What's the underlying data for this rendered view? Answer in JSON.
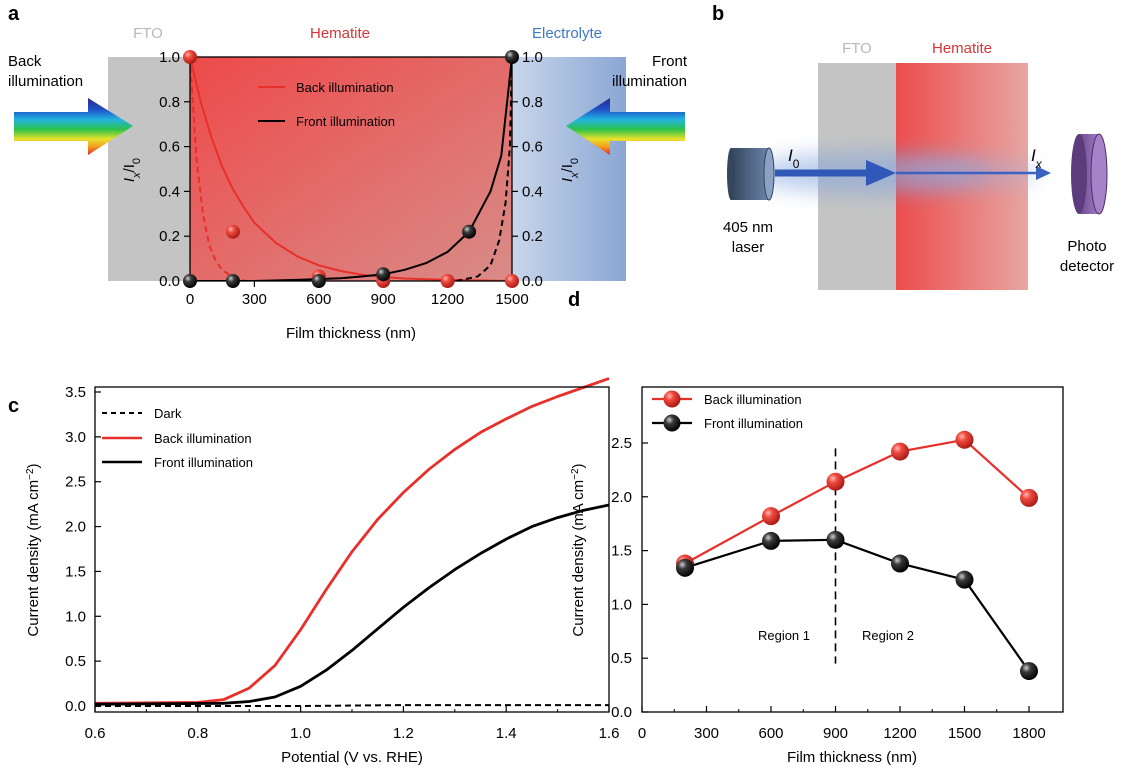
{
  "panel_labels": {
    "a": "a",
    "b": "b",
    "c": "c",
    "d": "d"
  },
  "panel_a": {
    "zones": {
      "fto": "FTO",
      "hematite": "Hematite",
      "electrolyte": "Electrolyte"
    },
    "back_note": [
      "Back",
      "illumination"
    ],
    "front_note": [
      "Front",
      "illumination"
    ],
    "ylabel_main": "I",
    "ylabel_sub1": "x",
    "ylabel_slash": "/I",
    "ylabel_sub2": "0",
    "xlabel": "Film thickness (nm)",
    "legend": {
      "back": "Back illumination",
      "front": "Front illumination"
    },
    "colors": {
      "back": "#e8302a",
      "front": "#000000"
    }
  },
  "panel_b": {
    "fto": "FTO",
    "hematite": "Hematite",
    "i0_main": "I",
    "i0_sub": "0",
    "ix_main": "I",
    "ix_sub": "x",
    "laser": [
      "405 nm",
      "laser"
    ],
    "detector": [
      "Photo",
      "detector"
    ]
  },
  "panel_c": {
    "xlabel": "Potential (V vs. RHE)",
    "ylabel": "Current density (mA cm",
    "ylabel_sup": "−2",
    "ylabel_close": ")",
    "legend": {
      "dark": "Dark",
      "back": "Back illumination",
      "front": "Front illumination"
    }
  },
  "panel_d": {
    "xlabel": "Film thickness (nm)",
    "ylabel": "Current density (mA cm",
    "ylabel_sup": "−2",
    "ylabel_close": ")",
    "legend": {
      "back": "Back illumination",
      "front": "Front illumination"
    },
    "regions": {
      "r1": "Region 1",
      "r2": "Region 2"
    }
  },
  "chart_data": [
    {
      "panel": "a",
      "type": "scatter",
      "xlabel": "Film thickness (nm)",
      "ylabel": "Ix/I0",
      "xlim": [
        0,
        1500
      ],
      "ylim": [
        0,
        1.0
      ],
      "xticks": [
        "0",
        "300",
        "600",
        "900",
        "1200",
        "1500"
      ],
      "yticks": [
        "0.0",
        "0.2",
        "0.4",
        "0.6",
        "0.8",
        "1.0"
      ],
      "series": [
        {
          "name": "Back illumination",
          "points": [
            [
              0,
              1.0
            ],
            [
              200,
              0.22
            ],
            [
              600,
              0.02
            ],
            [
              900,
              0.0
            ],
            [
              1200,
              0.0
            ],
            [
              1500,
              0.0
            ]
          ],
          "fit": [
            [
              0,
              1.0
            ],
            [
              50,
              0.8
            ],
            [
              100,
              0.64
            ],
            [
              150,
              0.51
            ],
            [
              200,
              0.41
            ],
            [
              250,
              0.33
            ],
            [
              300,
              0.26
            ],
            [
              400,
              0.17
            ],
            [
              500,
              0.11
            ],
            [
              600,
              0.07
            ],
            [
              700,
              0.045
            ],
            [
              800,
              0.028
            ],
            [
              900,
              0.018
            ],
            [
              1000,
              0.011
            ],
            [
              1200,
              0.005
            ],
            [
              1500,
              0.0
            ]
          ],
          "dashed": [
            [
              0,
              1.0
            ],
            [
              30,
              0.55
            ],
            [
              60,
              0.3
            ],
            [
              90,
              0.16
            ],
            [
              120,
              0.09
            ],
            [
              150,
              0.05
            ],
            [
              200,
              0.015
            ],
            [
              260,
              0.0
            ]
          ]
        },
        {
          "name": "Front illumination",
          "points": [
            [
              0,
              0.0
            ],
            [
              200,
              0.0
            ],
            [
              600,
              0.0
            ],
            [
              900,
              0.03
            ],
            [
              1300,
              0.22
            ],
            [
              1500,
              1.0
            ]
          ],
          "fit": [
            [
              0,
              0.0
            ],
            [
              300,
              0.0
            ],
            [
              500,
              0.005
            ],
            [
              700,
              0.012
            ],
            [
              800,
              0.02
            ],
            [
              900,
              0.03
            ],
            [
              1000,
              0.05
            ],
            [
              1100,
              0.08
            ],
            [
              1200,
              0.13
            ],
            [
              1300,
              0.22
            ],
            [
              1400,
              0.4
            ],
            [
              1450,
              0.56
            ],
            [
              1500,
              1.0
            ]
          ],
          "dashed": [
            [
              1240,
              0.0
            ],
            [
              1340,
              0.02
            ],
            [
              1400,
              0.07
            ],
            [
              1440,
              0.18
            ],
            [
              1470,
              0.35
            ],
            [
              1490,
              0.6
            ],
            [
              1500,
              1.0
            ]
          ]
        }
      ]
    },
    {
      "panel": "c",
      "type": "line",
      "xlabel": "Potential (V vs. RHE)",
      "ylabel": "Current density (mA cm−2)",
      "xlim": [
        0.6,
        1.6
      ],
      "ylim": [
        0,
        3.6
      ],
      "xticks": [
        "0.6",
        "0.8",
        "1.0",
        "1.2",
        "1.4",
        "1.6"
      ],
      "yticks": [
        "0.0",
        "0.5",
        "1.0",
        "1.5",
        "2.0",
        "2.5",
        "3.0",
        "3.5"
      ],
      "series": [
        {
          "name": "Dark",
          "x": [
            0.6,
            0.8,
            1.0,
            1.2,
            1.4,
            1.6
          ],
          "y": [
            0.0,
            0.0,
            0.0,
            0.01,
            0.01,
            0.01
          ]
        },
        {
          "name": "Back illumination",
          "x": [
            0.6,
            0.8,
            0.85,
            0.9,
            0.95,
            1.0,
            1.05,
            1.1,
            1.15,
            1.2,
            1.25,
            1.3,
            1.35,
            1.4,
            1.45,
            1.5,
            1.55,
            1.6
          ],
          "y": [
            0.03,
            0.04,
            0.07,
            0.2,
            0.45,
            0.85,
            1.3,
            1.72,
            2.08,
            2.38,
            2.64,
            2.86,
            3.05,
            3.2,
            3.34,
            3.45,
            3.55,
            3.65
          ]
        },
        {
          "name": "Front illumination",
          "x": [
            0.6,
            0.85,
            0.9,
            0.95,
            1.0,
            1.05,
            1.1,
            1.15,
            1.2,
            1.25,
            1.3,
            1.35,
            1.4,
            1.45,
            1.5,
            1.55,
            1.6
          ],
          "y": [
            0.02,
            0.03,
            0.05,
            0.1,
            0.22,
            0.4,
            0.62,
            0.86,
            1.1,
            1.32,
            1.52,
            1.7,
            1.86,
            2.0,
            2.1,
            2.18,
            2.24
          ]
        }
      ]
    },
    {
      "panel": "d",
      "type": "line",
      "xlabel": "Film thickness (nm)",
      "ylabel": "Current density (mA cm−2)",
      "xlim": [
        0,
        1950
      ],
      "ylim": [
        0,
        2.8
      ],
      "xticks": [
        "0",
        "300",
        "600",
        "900",
        "1200",
        "1500",
        "1800"
      ],
      "yticks": [
        "0.0",
        "0.5",
        "1.0",
        "1.5",
        "2.0",
        "2.5"
      ],
      "series": [
        {
          "name": "Back illumination",
          "x": [
            200,
            600,
            900,
            1200,
            1500,
            1800
          ],
          "y": [
            1.38,
            1.82,
            2.14,
            2.42,
            2.53,
            1.99
          ]
        },
        {
          "name": "Front illumination",
          "x": [
            200,
            600,
            900,
            1200,
            1500,
            1800
          ],
          "y": [
            1.34,
            1.59,
            1.6,
            1.38,
            1.23,
            0.38
          ]
        }
      ],
      "region_divider_x": 900
    }
  ]
}
